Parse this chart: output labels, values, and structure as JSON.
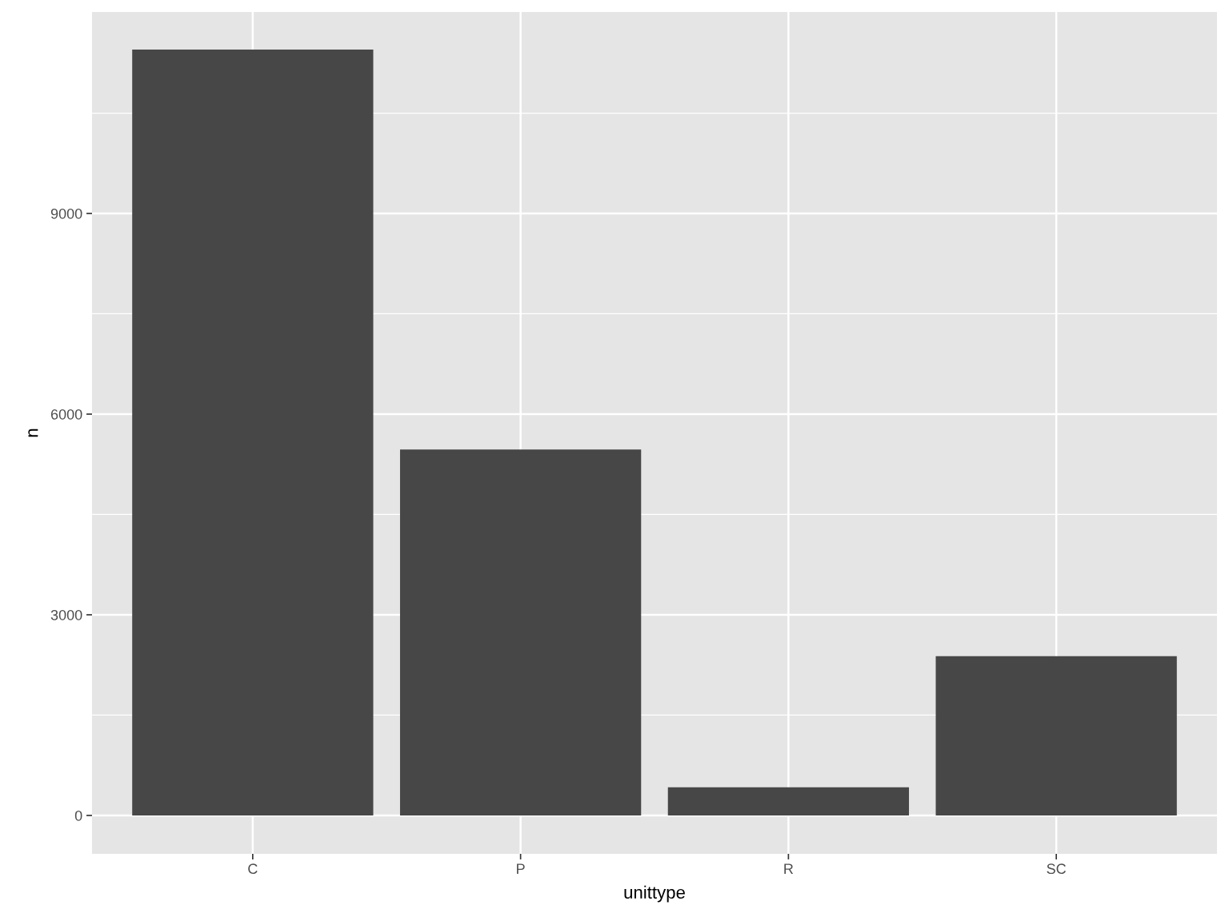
{
  "chart_data": {
    "type": "bar",
    "xlabel": "unittype",
    "ylabel": "n",
    "categories": [
      "C",
      "P",
      "R",
      "SC"
    ],
    "values": [
      11450,
      5470,
      420,
      2380
    ],
    "color": "#474747",
    "ylim": [
      -574,
      12012
    ],
    "yticks": [
      0,
      3000,
      6000,
      9000
    ],
    "grid": true
  }
}
